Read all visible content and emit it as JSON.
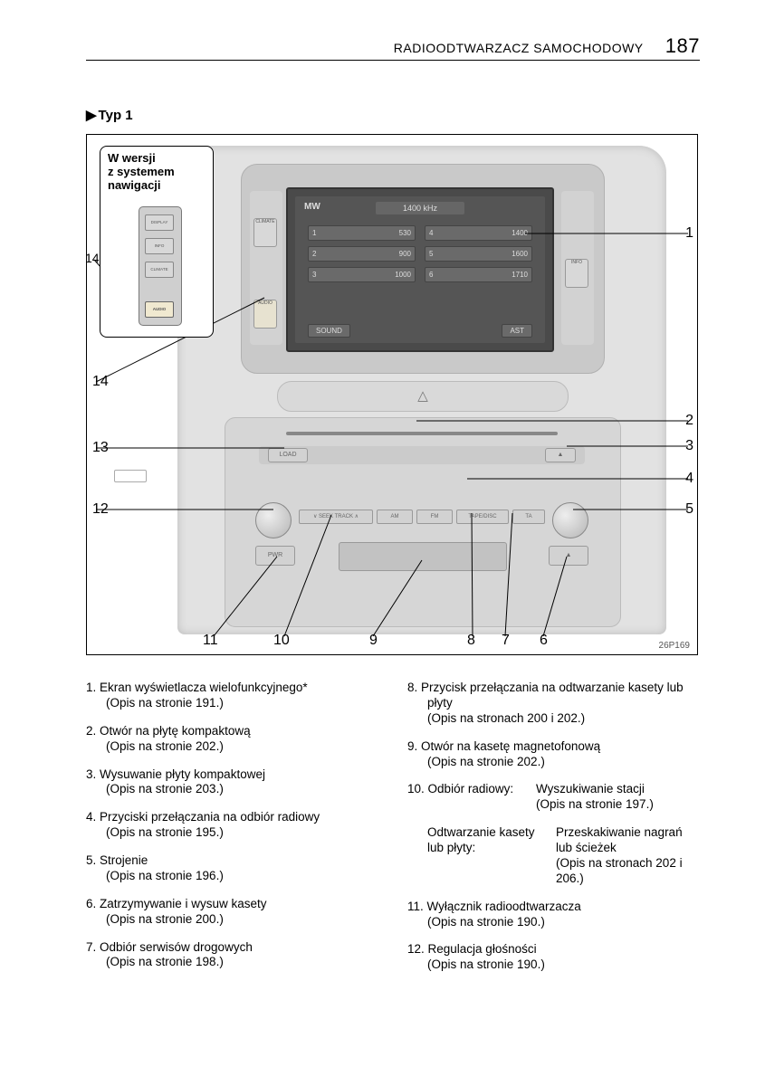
{
  "header": {
    "title": "RADIOODTWARZACZ SAMOCHODOWY",
    "page": "187"
  },
  "typ_label": "Typ 1",
  "diagram": {
    "code": "26P169",
    "inset_text": "W wersji\nz systemem\nnawigacji",
    "inset_buttons": [
      "DISPLAY",
      "INFO",
      "CLIMATE",
      "AUDIO"
    ],
    "side_buttons_left": [
      "CLIMATE",
      "AUDIO"
    ],
    "side_buttons_right": [
      "INFO"
    ],
    "screen": {
      "band": "MW",
      "freq": "1400 kHz",
      "presets": [
        {
          "n": "1",
          "f": "530"
        },
        {
          "n": "4",
          "f": "1400"
        },
        {
          "n": "2",
          "f": "900"
        },
        {
          "n": "5",
          "f": "1600"
        },
        {
          "n": "3",
          "f": "1000"
        },
        {
          "n": "6",
          "f": "1710"
        }
      ],
      "btn_left": "SOUND",
      "btn_right": "AST"
    },
    "buttons": {
      "load": "LOAD",
      "pwr": "PWR",
      "seek": "∨ SEEK TRACK ∧",
      "am": "AM",
      "fm": "FM",
      "tape_disc": "TAPE/DISC",
      "ta": "TA",
      "eject": "▲",
      "vol": "VOL",
      "tune": "TUNE"
    },
    "callouts": {
      "1": "1",
      "2": "2",
      "3": "3",
      "4": "4",
      "5": "5",
      "6": "6",
      "7": "7",
      "8": "8",
      "9": "9",
      "10": "10",
      "11": "11",
      "12": "12",
      "13": "13",
      "14": "14",
      "14b": "14"
    }
  },
  "list_left": [
    {
      "num": "1.",
      "text": "Ekran wyświetlacza wielofunkcyjnego*",
      "ref": "(Opis na stronie 191.)"
    },
    {
      "num": "2.",
      "text": "Otwór na płytę kompaktową",
      "ref": "(Opis na stronie 202.)"
    },
    {
      "num": "3.",
      "text": "Wysuwanie płyty kompaktowej",
      "ref": "(Opis na stronie 203.)"
    },
    {
      "num": "4.",
      "text": "Przyciski przełączania na odbiór radiowy",
      "ref": "(Opis na stronie 195.)"
    },
    {
      "num": "5.",
      "text": "Strojenie",
      "ref": "(Opis na stronie 196.)"
    },
    {
      "num": "6.",
      "text": "Zatrzymywanie i wysuw kasety",
      "ref": "(Opis na stronie 200.)"
    },
    {
      "num": "7.",
      "text": "Odbiór serwisów drogowych",
      "ref": "(Opis na stronie 198.)"
    }
  ],
  "list_right": [
    {
      "num": "8.",
      "text": "Przycisk przełączania na odtwarzanie kasety lub płyty",
      "ref": "(Opis na stronach 200 i 202.)"
    },
    {
      "num": "9.",
      "text": "Otwór na kasetę magnetofonową",
      "ref": "(Opis na stronie 202.)"
    }
  ],
  "item10": {
    "num": "10.",
    "label1": "Odbiór radiowy:",
    "val1": "Wyszukiwanie stacji\n(Opis na stronie 197.)",
    "label2": "Odtwarzanie kasety\nlub płyty:",
    "val2": "Przeskakiwanie nagrań lub ścieżek\n(Opis na stronach 202 i 206.)"
  },
  "list_right2": [
    {
      "num": "11.",
      "text": "Wyłącznik radioodtwarzacza",
      "ref": "(Opis na stronie 190.)"
    },
    {
      "num": "12.",
      "text": "Regulacja głośności",
      "ref": "(Opis na stronie 190.)"
    }
  ]
}
